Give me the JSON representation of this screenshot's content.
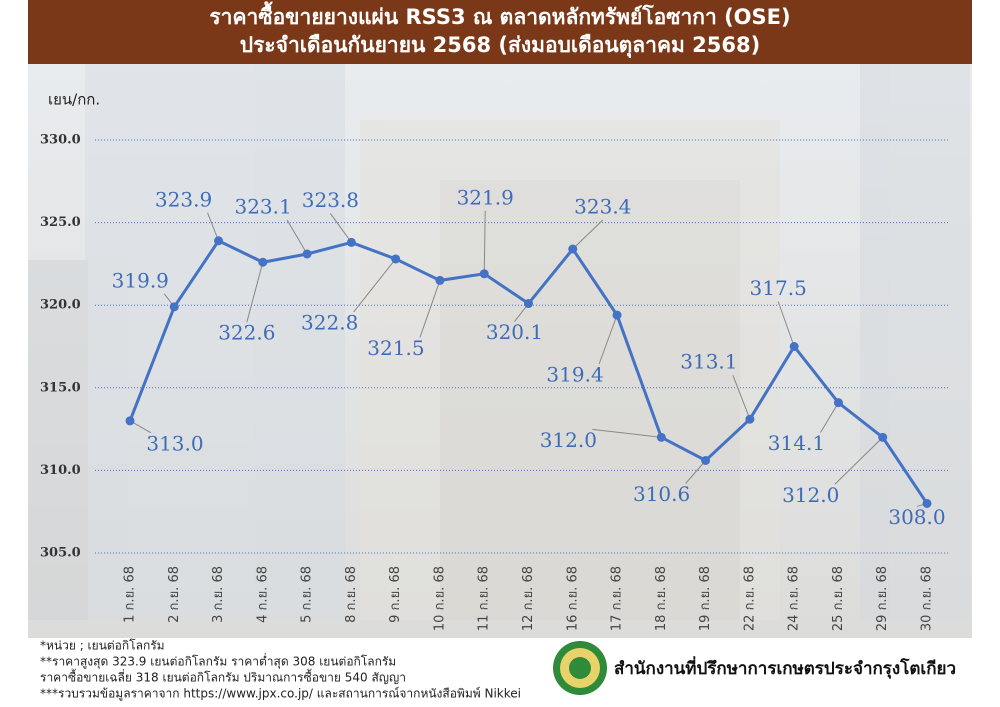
{
  "chart_data": {
    "type": "line",
    "title": "ราคาซื้อขายยางแผ่น RSS3 ณ ตลาดหลักทรัพย์โอซากา (OSE)",
    "subtitle": "ประจำเดือนกันยายน 2568 (ส่งมอบเดือนตุลาคม 2568)",
    "y_label": "เยน/กก.",
    "categories": [
      "1 ก.ย. 68",
      "2 ก.ย. 68",
      "3 ก.ย. 68",
      "4 ก.ย. 68",
      "5 ก.ย. 68",
      "8 ก.ย. 68",
      "9 ก.ย. 68",
      "10 ก.ย. 68",
      "11 ก.ย. 68",
      "12 ก.ย. 68",
      "16 ก.ย. 68",
      "17 ก.ย. 68",
      "18 ก.ย. 68",
      "19 ก.ย. 68",
      "22 ก.ย. 68",
      "24 ก.ย. 68",
      "25 ก.ย. 68",
      "29 ก.ย. 68",
      "30 ก.ย. 68"
    ],
    "values": [
      313.0,
      319.9,
      323.9,
      322.6,
      323.1,
      323.8,
      322.8,
      321.5,
      321.9,
      320.1,
      323.4,
      319.4,
      312.0,
      310.6,
      313.1,
      317.5,
      314.1,
      312.0,
      308.0
    ],
    "value_labels": [
      "313.0",
      "319.9",
      "323.9",
      "322.6",
      "323.1",
      "323.8",
      "322.8",
      "321.5",
      "321.9",
      "320.1",
      "323.4",
      "319.4",
      "312.0",
      "310.6",
      "313.1",
      "317.5",
      "314.1",
      "312.0",
      "308.0"
    ],
    "color": "#4472c4",
    "ylim": [
      305,
      330
    ],
    "yticks": [
      {
        "value": 305,
        "label": "305.0"
      },
      {
        "value": 310,
        "label": "310.0"
      },
      {
        "value": 315,
        "label": "315.0"
      },
      {
        "value": 320,
        "label": "320.0"
      },
      {
        "value": 325,
        "label": "325.0"
      },
      {
        "value": 330,
        "label": "330.0"
      }
    ],
    "grid": true,
    "notes": [
      "*หน่วย ; เยนต่อกิโลกรัม",
      "**ราคาสูงสุด 323.9 เยนต่อกิโลกรัม ราคาต่ำสุด 308 เยนต่อกิโลกรัม",
      "ราคาซื้อขายเฉลี่ย 318 เยนต่อกิโลกรัม ปริมาณการซื้อขาย 540 สัญญา",
      "***รวบรวมข้อมูลราคาจาก https://www.jpx.co.jp/ และสถานการณ์จากหนังสือพิมพ์ Nikkei"
    ],
    "organization": "สำนักงานที่ปรึกษาการเกษตรประจำกรุงโตเกียว"
  }
}
